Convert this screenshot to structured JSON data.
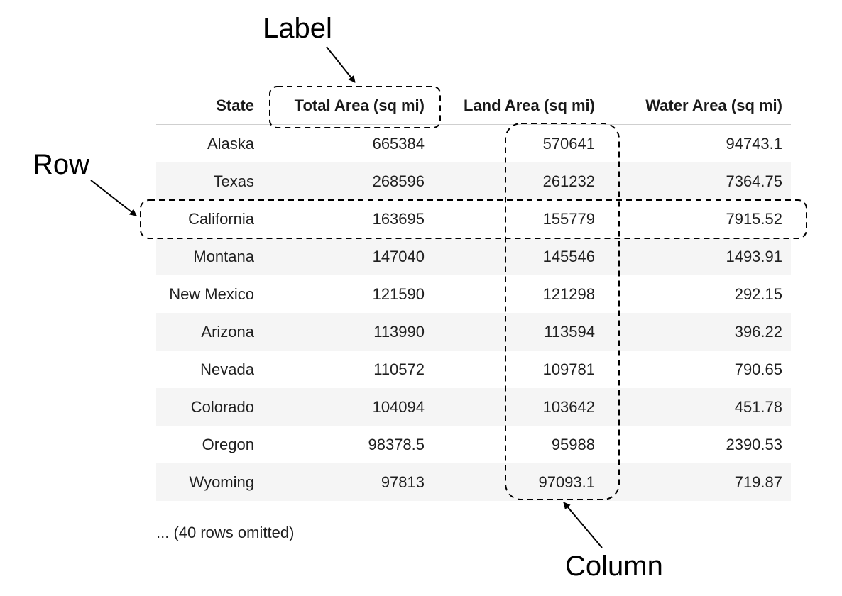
{
  "annotations": {
    "label": "Label",
    "row": "Row",
    "column": "Column"
  },
  "table": {
    "headers": [
      "State",
      "Total Area (sq mi)",
      "Land Area (sq mi)",
      "Water Area (sq mi)"
    ],
    "rows": [
      [
        "Alaska",
        "665384",
        "570641",
        "94743.1"
      ],
      [
        "Texas",
        "268596",
        "261232",
        "7364.75"
      ],
      [
        "California",
        "163695",
        "155779",
        "7915.52"
      ],
      [
        "Montana",
        "147040",
        "145546",
        "1493.91"
      ],
      [
        "New Mexico",
        "121590",
        "121298",
        "292.15"
      ],
      [
        "Arizona",
        "113990",
        "113594",
        "396.22"
      ],
      [
        "Nevada",
        "110572",
        "109781",
        "790.65"
      ],
      [
        "Colorado",
        "104094",
        "103642",
        "451.78"
      ],
      [
        "Oregon",
        "98378.5",
        "95988",
        "2390.53"
      ],
      [
        "Wyoming",
        "97813",
        "97093.1",
        "719.87"
      ]
    ],
    "footer": "... (40 rows omitted)"
  }
}
